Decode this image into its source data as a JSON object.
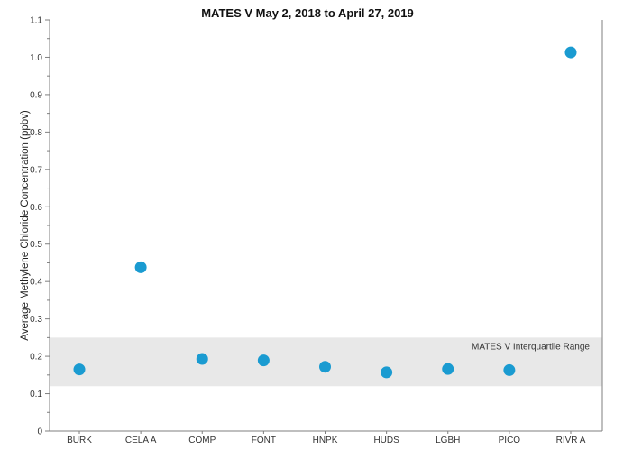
{
  "chart_data": {
    "type": "scatter",
    "title": "MATES V May 2, 2018 to April 27, 2019",
    "ylabel": "Average Methylene Chloride Concentration (ppbv)",
    "xlabel": "",
    "categories": [
      "BURK",
      "CELA A",
      "COMP",
      "FONT",
      "HNPK",
      "HUDS",
      "LGBH",
      "PICO",
      "RIVR A"
    ],
    "values": [
      0.165,
      0.438,
      0.193,
      0.189,
      0.172,
      0.157,
      0.166,
      0.163,
      1.013
    ],
    "ylim": [
      0,
      1.1
    ],
    "yticks": [
      0,
      0.1,
      0.2,
      0.3,
      0.4,
      0.5,
      0.6,
      0.7,
      0.8,
      0.9,
      1.0,
      1.1
    ],
    "ytick_labels": [
      "0",
      "0.1",
      "0.2",
      "0.3",
      "0.4",
      "0.5",
      "0.6",
      "0.7",
      "0.8",
      "0.9",
      "1.0",
      "1.1"
    ],
    "grid": false,
    "legend": "none",
    "reference_band": {
      "label": "MATES V Interquartile Range",
      "y_min": 0.12,
      "y_max": 0.25,
      "color": "#e8e8e8"
    },
    "marker_color": "#1a9bd1"
  }
}
